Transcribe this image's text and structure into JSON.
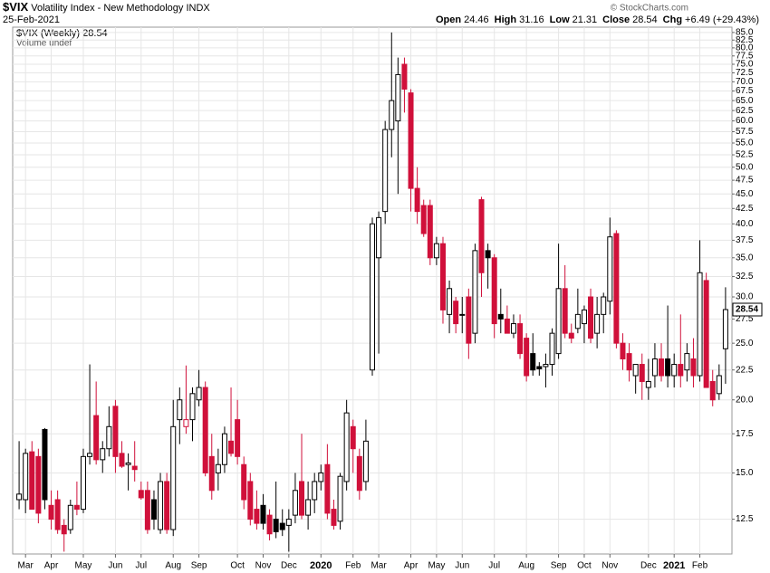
{
  "header": {
    "symbol": "$VIX",
    "name": "Volatility Index - New Methodology",
    "exchange": "INDX",
    "date": "25-Feb-2021",
    "stats": [
      {
        "label": "Open",
        "value": "24.46"
      },
      {
        "label": "High",
        "value": "31.16"
      },
      {
        "label": "Low",
        "value": "21.31"
      },
      {
        "label": "Close",
        "value": "28.54"
      },
      {
        "label": "Chg",
        "value": "+6.49 (+29.43%)"
      }
    ],
    "credit": "© StockCharts.com"
  },
  "chart_data": {
    "type": "candlestick",
    "legend": {
      "series": "$VIX (Weekly) 28.54",
      "volume": "Volume undef"
    },
    "last_label": "28.54",
    "up_color": "#000000",
    "down_color": "#d0103a",
    "log_scale": true,
    "grid": true,
    "ylim": [
      10.9,
      86.8
    ],
    "yticks": [
      12.5,
      {
        "value": 15,
        "label": "15.0"
      },
      17.5,
      {
        "value": 20,
        "label": "20.0"
      },
      22.5,
      {
        "value": 25,
        "label": "25.0"
      },
      27.5,
      {
        "value": 30,
        "label": "30.0"
      },
      32.5,
      {
        "value": 35,
        "label": "35.0"
      },
      37.5,
      {
        "value": 40,
        "label": "40.0"
      },
      42.5,
      {
        "value": 45,
        "label": "45.0"
      },
      47.5,
      {
        "value": 50,
        "label": "50.0"
      },
      52.5,
      {
        "value": 55,
        "label": "55.0"
      },
      57.5,
      {
        "value": 60,
        "label": "60.0"
      },
      62.5,
      {
        "value": 65,
        "label": "65.0"
      },
      67.5,
      {
        "value": 70,
        "label": "70.0"
      },
      72.5,
      {
        "value": 75,
        "label": "75.0"
      },
      77.5,
      {
        "value": 80,
        "label": "80.0"
      },
      82.5,
      {
        "value": 85,
        "label": "85.0"
      }
    ],
    "xlim": [
      -1,
      111
    ],
    "xticks": [
      {
        "value": 1,
        "label": "Mar"
      },
      {
        "value": 5,
        "label": "Apr"
      },
      {
        "value": 10,
        "label": "May"
      },
      {
        "value": 15,
        "label": "Jun"
      },
      {
        "value": 19,
        "label": "Jul"
      },
      {
        "value": 24,
        "label": "Aug"
      },
      {
        "value": 28,
        "label": "Sep"
      },
      {
        "value": 34,
        "label": "Oct"
      },
      {
        "value": 38,
        "label": "Nov"
      },
      {
        "value": 42,
        "label": "Dec"
      },
      {
        "value": 47,
        "label": "2020"
      },
      {
        "value": 52,
        "label": "Feb"
      },
      {
        "value": 56,
        "label": "Mar"
      },
      {
        "value": 61,
        "label": "Apr"
      },
      {
        "value": 65,
        "label": "May"
      },
      {
        "value": 69,
        "label": "Jun"
      },
      {
        "value": 74,
        "label": "Jul"
      },
      {
        "value": 79,
        "label": "Aug"
      },
      {
        "value": 84,
        "label": "Sep"
      },
      {
        "value": 88,
        "label": "Oct"
      },
      {
        "value": 92,
        "label": "Nov"
      },
      {
        "value": 98,
        "label": "Dec"
      },
      {
        "value": 102,
        "label": "2021"
      },
      {
        "value": 106,
        "label": "Feb"
      }
    ],
    "open": [
      13.5,
      13.5,
      16.3,
      16,
      17.8,
      13.2,
      13.5,
      12.2,
      12,
      13.2,
      13,
      16,
      18.8,
      15.8,
      16.5,
      19.5,
      16.2,
      15.5,
      15.4,
      14,
      14,
      13.5,
      12,
      14.5,
      12,
      18.5,
      18,
      18.5,
      20,
      21,
      16,
      15,
      15.5,
      17,
      18.5,
      15.5,
      14.5,
      13,
      13.2,
      12.7,
      12.5,
      12.3,
      12.2,
      12.7,
      14.5,
      12.7,
      13.5,
      14.5,
      15.5,
      13,
      12.4,
      14.5,
      18,
      16,
      14.5,
      22.5,
      35,
      42,
      58,
      60,
      75,
      67,
      46,
      43,
      43,
      35,
      37,
      28,
      29.5,
      28,
      30,
      26,
      44,
      36,
      35,
      28,
      27.5,
      26,
      27,
      25.5,
      24,
      22.8,
      22.8,
      23,
      24,
      31,
      26,
      26.5,
      27,
      30,
      26,
      28,
      29.5,
      38.5,
      25,
      24,
      22,
      23,
      21,
      22,
      23.5,
      23.5,
      22,
      23,
      22.5,
      23.5,
      22,
      32,
      21.5,
      20.5,
      24.46
    ],
    "high": [
      17,
      16.5,
      17,
      16.5,
      17.9,
      14,
      14,
      12.5,
      13.5,
      14.5,
      16.5,
      23,
      21.5,
      17,
      19.5,
      20,
      17,
      16.2,
      17,
      14.5,
      14.5,
      14,
      15,
      15,
      20,
      21,
      22.9,
      21,
      22.5,
      21.5,
      17.5,
      16.5,
      18,
      21,
      20,
      16,
      15,
      14,
      13.8,
      13,
      14.5,
      13,
      13,
      15,
      17.5,
      14.5,
      15,
      15.5,
      16.8,
      13.5,
      15,
      20,
      18.5,
      16.5,
      18.5,
      41,
      42,
      60,
      85,
      77,
      77,
      68,
      50,
      44,
      44,
      38,
      38,
      32,
      30,
      30,
      31,
      37,
      44.5,
      37,
      35.5,
      31,
      29,
      28,
      28,
      26,
      26,
      23.2,
      24,
      26.5,
      37,
      34,
      27,
      31,
      29,
      31,
      30,
      30.5,
      41,
      39,
      26,
      25,
      23,
      24,
      23.5,
      25,
      25,
      29,
      24,
      28,
      25,
      25.5,
      37.5,
      33,
      22.5,
      23,
      31.16
    ],
    "low": [
      13,
      12.8,
      13,
      12.3,
      13,
      12,
      11.8,
      11,
      11.8,
      12.7,
      12.8,
      15.5,
      15.5,
      15,
      16,
      15,
      15.3,
      14,
      14.5,
      13.5,
      11.8,
      12,
      11.8,
      11.8,
      11.7,
      16.8,
      17.5,
      17,
      19.5,
      14.8,
      13.5,
      14,
      15,
      16,
      15.5,
      13,
      12.2,
      12,
      12,
      11.5,
      11.6,
      11.7,
      11,
      12.3,
      12.5,
      12,
      12.8,
      14,
      12.5,
      12,
      12,
      14,
      15,
      13.5,
      14,
      22,
      24,
      40,
      52,
      45,
      62,
      42,
      40,
      38,
      34,
      34,
      27,
      26,
      26,
      26,
      23.5,
      25,
      30,
      31,
      25.5,
      26,
      26,
      25.5,
      23.5,
      21.5,
      22,
      22,
      21,
      22,
      23.5,
      25.5,
      25,
      26,
      25,
      25,
      24.5,
      26,
      28,
      24.5,
      22.5,
      21.5,
      20.5,
      20,
      20,
      21,
      21.5,
      21,
      21,
      21,
      21.5,
      21,
      21.5,
      21,
      19.5,
      20,
      21.31
    ],
    "close": [
      13.8,
      16.2,
      13,
      12.8,
      13.5,
      12.5,
      12,
      11.8,
      13.2,
      13,
      16,
      16.2,
      15.8,
      16.5,
      18,
      16,
      15.4,
      15.6,
      15.2,
      13.6,
      12,
      12.5,
      14.5,
      12,
      18,
      20,
      18.5,
      20.5,
      21,
      15,
      14,
      15.5,
      17.5,
      16.2,
      16,
      13.5,
      12.5,
      12.3,
      12.3,
      11.8,
      11.9,
      12,
      12.5,
      14,
      12.7,
      13.5,
      14.5,
      15,
      12.8,
      12.2,
      14.8,
      19,
      16.5,
      14,
      17,
      40,
      41,
      58,
      65,
      72,
      68,
      46,
      42,
      38.5,
      35,
      37,
      28.5,
      31,
      27,
      28,
      25,
      36,
      33,
      35,
      27,
      27.5,
      26,
      27,
      24,
      22,
      22.5,
      22.6,
      23,
      26,
      31,
      26,
      25.5,
      28,
      28.5,
      25.5,
      28,
      30,
      38,
      25,
      23.5,
      22.5,
      23,
      21.5,
      21.5,
      23.5,
      22,
      22,
      23,
      22,
      24,
      22,
      33,
      21,
      20,
      22,
      28.54
    ]
  }
}
